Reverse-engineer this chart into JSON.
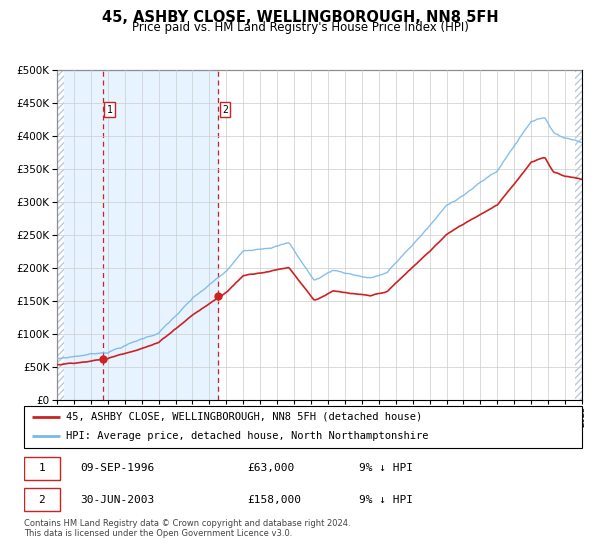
{
  "title": "45, ASHBY CLOSE, WELLINGBOROUGH, NN8 5FH",
  "subtitle": "Price paid vs. HM Land Registry's House Price Index (HPI)",
  "legend_line1": "45, ASHBY CLOSE, WELLINGBOROUGH, NN8 5FH (detached house)",
  "legend_line2": "HPI: Average price, detached house, North Northamptonshire",
  "transaction1_date": "09-SEP-1996",
  "transaction1_price": "£63,000",
  "transaction1_hpi": "9% ↓ HPI",
  "transaction2_date": "30-JUN-2003",
  "transaction2_price": "£158,000",
  "transaction2_hpi": "9% ↓ HPI",
  "footnote": "Contains HM Land Registry data © Crown copyright and database right 2024.\nThis data is licensed under the Open Government Licence v3.0.",
  "xmin": 1994.0,
  "xmax": 2025.0,
  "ymin": 0,
  "ymax": 500000,
  "yticks": [
    0,
    50000,
    100000,
    150000,
    200000,
    250000,
    300000,
    350000,
    400000,
    450000,
    500000
  ],
  "hpi_color": "#7bb8e8",
  "price_color": "#cc2222",
  "vline_color": "#cc2222",
  "shade_color": "#ddeeff",
  "dot_color": "#cc2222",
  "transaction1_x": 1996.69,
  "transaction1_y": 63000,
  "transaction2_x": 2003.5,
  "transaction2_y": 158000,
  "hpi_scale": 1.09
}
